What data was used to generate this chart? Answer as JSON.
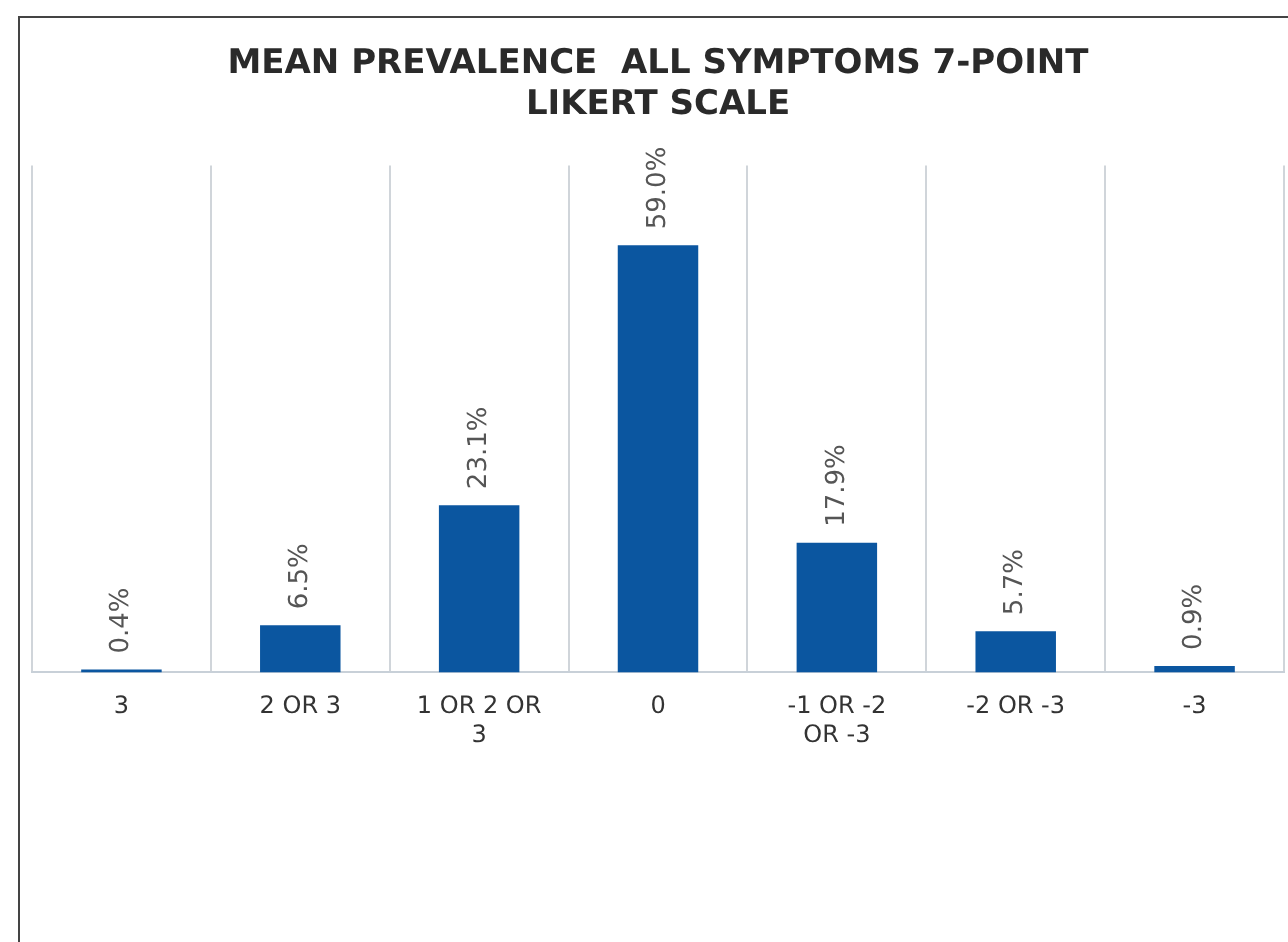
{
  "chart_data": {
    "type": "bar",
    "title": "MEAN PREVALENCE  ALL SYMPTOMS 7-POINT LIKERT SCALE",
    "categories": [
      "3",
      "2 OR 3",
      "1 OR 2 OR 3",
      "0",
      "-1 OR -2 OR -3",
      "-2 OR -3",
      "-3"
    ],
    "values": [
      0.4,
      6.5,
      23.1,
      59.0,
      17.9,
      5.7,
      0.9
    ],
    "value_labels": [
      "0.4%",
      "6.5%",
      "23.1%",
      "59.0%",
      "17.9%",
      "5.7%",
      "0.9%"
    ],
    "color": "#0b56a0",
    "grid": "x",
    "legend": false,
    "tick_labels": "x"
  }
}
